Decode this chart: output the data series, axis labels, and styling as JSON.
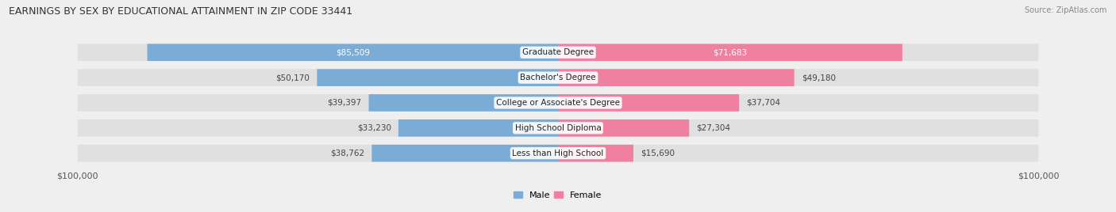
{
  "title": "EARNINGS BY SEX BY EDUCATIONAL ATTAINMENT IN ZIP CODE 33441",
  "source": "Source: ZipAtlas.com",
  "categories": [
    "Less than High School",
    "High School Diploma",
    "College or Associate's Degree",
    "Bachelor's Degree",
    "Graduate Degree"
  ],
  "male_values": [
    38762,
    33230,
    39397,
    50170,
    85509
  ],
  "female_values": [
    15690,
    27304,
    37704,
    49180,
    71683
  ],
  "male_labels": [
    "$38,762",
    "$33,230",
    "$39,397",
    "$50,170",
    "$85,509"
  ],
  "female_labels": [
    "$15,690",
    "$27,304",
    "$37,704",
    "$49,180",
    "$71,683"
  ],
  "male_color": "#7aacd6",
  "female_color": "#f080a0",
  "max_value": 100000,
  "background_color": "#efefef",
  "bar_bg_color": "#e0e0e0",
  "tick_label": "$100,000"
}
